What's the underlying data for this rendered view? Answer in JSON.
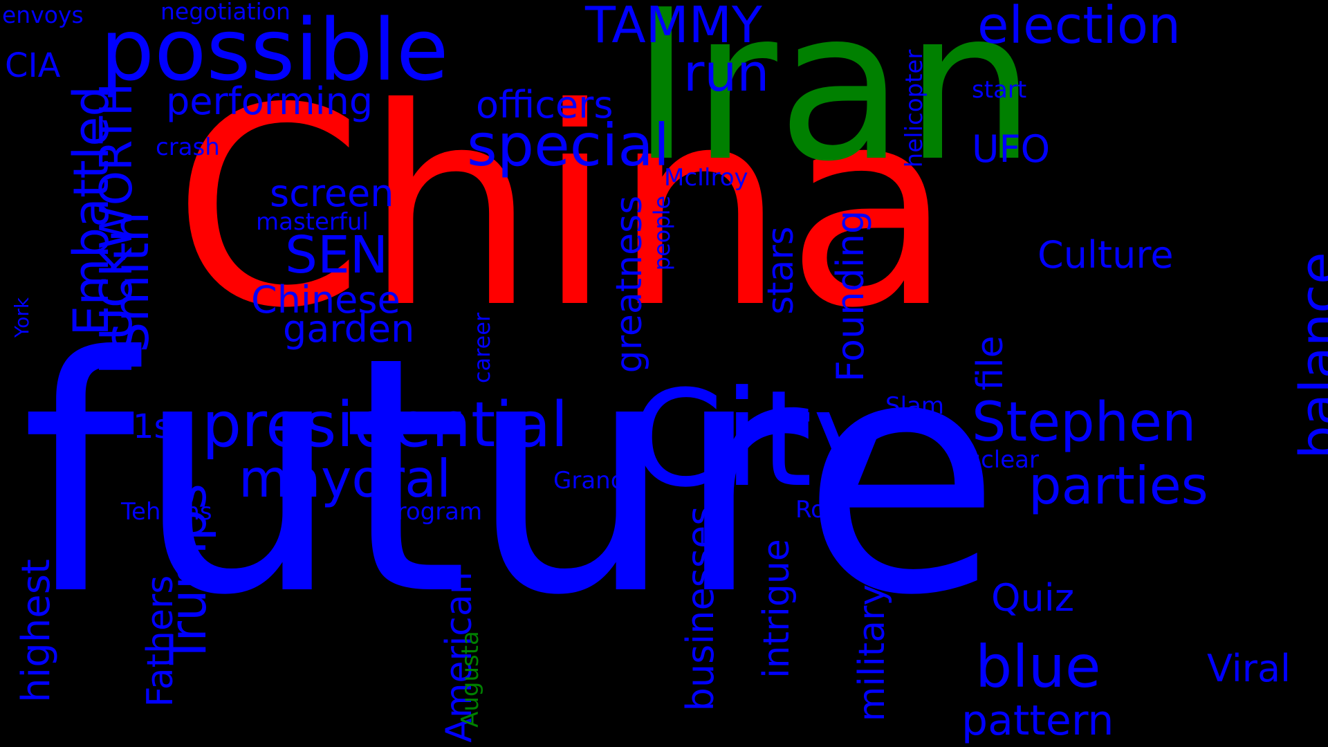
{
  "palette": {
    "background": "#000000",
    "blue": "#0000ff",
    "red": "#ff0000",
    "green": "#008000"
  },
  "words": {
    "china": "China",
    "future": "future",
    "iran": "Iran",
    "city": "City",
    "possible": "possible",
    "presidential": "presidential",
    "special": "special",
    "mayoral": "mayoral",
    "parties": "parties",
    "stephen": "Stephen",
    "blue": "blue",
    "election": "election",
    "tammy": "TAMMY",
    "run": "run",
    "officers": "officers",
    "performing": "performing",
    "sen": "SEN",
    "chinese": "Chinese",
    "garden": "garden",
    "screen": "screen",
    "culture": "Culture",
    "ufo": "UFO",
    "pattern": "pattern",
    "viral": "Viral",
    "quiz": "Quiz",
    "cia": "CIA",
    "first": "1st",
    "crash": "crash",
    "masterful": "masterful",
    "mcilroy": "McIlroy",
    "start": "start",
    "slam": "Slam",
    "nuclear": "nuclear",
    "grand": "Grand",
    "tehrans": "Tehrans",
    "program": "program",
    "rory": "Rory",
    "envoys": "envoys",
    "negotiation": "negotiation",
    "embattled": "Embattled",
    "duckworth": "DUCKWORTH",
    "smith": "Smith",
    "york": "York",
    "trumps": "Trumps",
    "fathers": "Fathers",
    "highest": "highest",
    "american": "American",
    "augusta": "Augusta",
    "career": "career",
    "businesses": "businesses",
    "greatness": "greatness",
    "people": "people",
    "stars": "stars",
    "founding": "Founding",
    "intrigue": "intrigue",
    "military": "military",
    "file": "file",
    "helicopter": "helicopter",
    "balance": "balance"
  }
}
